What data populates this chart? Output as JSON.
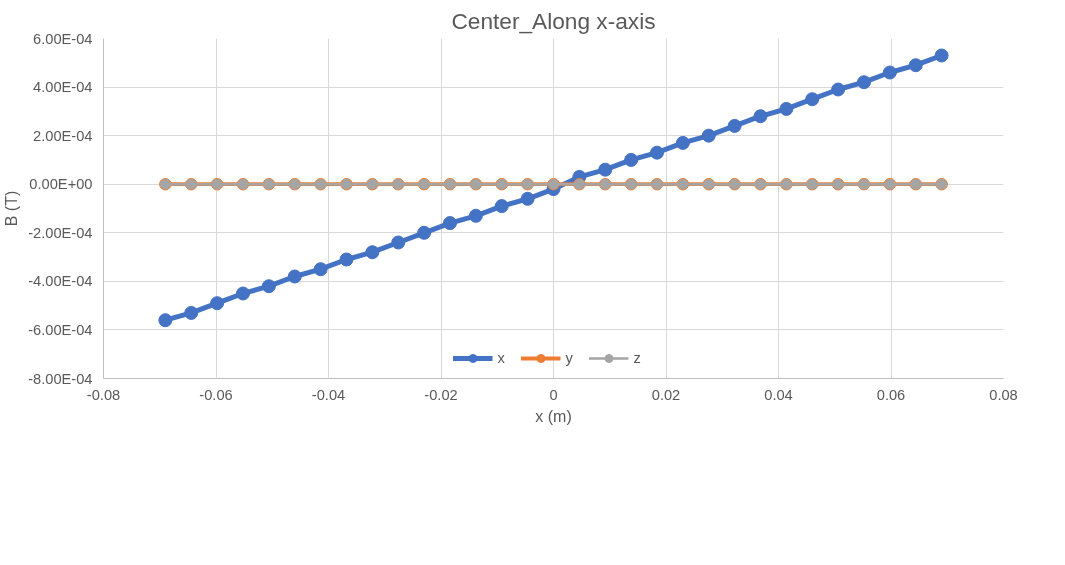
{
  "chart_data": {
    "type": "line",
    "title": "Center_Along x-axis",
    "xlabel": "x (m)",
    "ylabel": "B (T)",
    "x": [
      -0.069,
      -0.0644,
      -0.0598,
      -0.0552,
      -0.0506,
      -0.046,
      -0.0414,
      -0.0368,
      -0.0322,
      -0.0276,
      -0.023,
      -0.0184,
      -0.0138,
      -0.0092,
      -0.0046,
      0,
      0.0046,
      0.0092,
      0.0138,
      0.0184,
      0.023,
      0.0276,
      0.0322,
      0.0368,
      0.0414,
      0.046,
      0.0506,
      0.0552,
      0.0598,
      0.0644,
      0.069
    ],
    "series": [
      {
        "name": "x",
        "color": "#4472c4",
        "values": [
          -0.00056,
          -0.00053,
          -0.00049,
          -0.00045,
          -0.00042,
          -0.00038,
          -0.00035,
          -0.00031,
          -0.00028,
          -0.00024,
          -0.0002,
          -0.00016,
          -0.00013,
          -9e-05,
          -6e-05,
          -2e-05,
          3e-05,
          6e-05,
          0.0001,
          0.00013,
          0.00017,
          0.0002,
          0.00024,
          0.00028,
          0.00031,
          0.00035,
          0.00039,
          0.00042,
          0.00046,
          0.00049,
          0.00053
        ]
      },
      {
        "name": "y",
        "color": "#ed7d31",
        "values": [
          0,
          0,
          0,
          0,
          0,
          0,
          0,
          0,
          0,
          0,
          0,
          0,
          0,
          0,
          0,
          0,
          0,
          0,
          0,
          0,
          0,
          0,
          0,
          0,
          0,
          0,
          0,
          0,
          0,
          0,
          0
        ]
      },
      {
        "name": "z",
        "color": "#a5a5a5",
        "values": [
          0,
          0,
          0,
          0,
          0,
          0,
          0,
          0,
          0,
          0,
          0,
          0,
          0,
          0,
          0,
          0,
          0,
          0,
          0,
          0,
          0,
          0,
          0,
          0,
          0,
          0,
          0,
          0,
          0,
          0,
          0
        ]
      }
    ],
    "xlim": [
      -0.08,
      0.08
    ],
    "xticks": [
      -0.08,
      -0.06,
      -0.04,
      -0.02,
      0,
      0.02,
      0.04,
      0.06,
      0.08
    ],
    "ylim": [
      -0.0008,
      0.0006
    ],
    "yticks": [
      {
        "value": -0.0008,
        "label": "-8.00E-04"
      },
      {
        "value": -0.0006,
        "label": "-6.00E-04"
      },
      {
        "value": -0.0004,
        "label": "-4.00E-04"
      },
      {
        "value": -0.0002,
        "label": "-2.00E-04"
      },
      {
        "value": 0,
        "label": "0.00E+00"
      },
      {
        "value": 0.0002,
        "label": "2.00E-04"
      },
      {
        "value": 0.0004,
        "label": "4.00E-04"
      },
      {
        "value": 0.0006,
        "label": "6.00E-04"
      }
    ],
    "grid": true,
    "legend": "bottom",
    "marker": "circle",
    "line_style": "solid"
  }
}
